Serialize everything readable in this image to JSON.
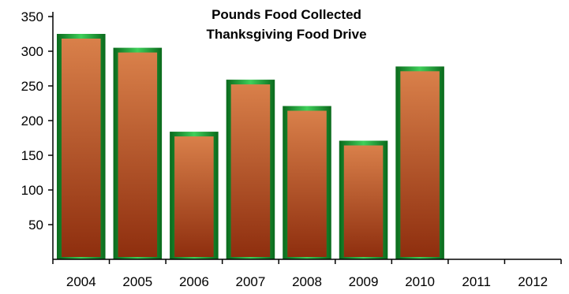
{
  "chart_data": {
    "type": "bar",
    "title": "Pounds Food Collected",
    "subtitle": "Thanksgiving Food Drive",
    "xlabel": "",
    "ylabel": "",
    "categories": [
      "2004",
      "2005",
      "2006",
      "2007",
      "2008",
      "2009",
      "2010",
      "2011",
      "2012"
    ],
    "values": [
      325,
      305,
      184,
      259,
      221,
      171,
      278,
      null,
      null
    ],
    "ylim": [
      0,
      350
    ],
    "yticks": [
      50,
      100,
      150,
      200,
      250,
      300,
      350
    ],
    "grid": false,
    "legend": "none",
    "colors": {
      "bar_fill_light": "#d9804a",
      "bar_fill_dark": "#8e2e0e",
      "bar_border_light": "#3fcf5a",
      "bar_border_dark": "#0a6a1c",
      "axis": "#000000"
    }
  }
}
